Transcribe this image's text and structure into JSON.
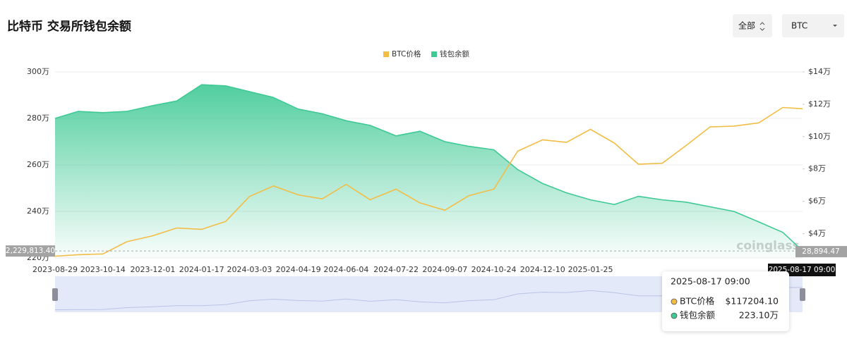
{
  "title": "比特币 交易所钱包余额",
  "controls": [
    "全部",
    "BTC"
  ],
  "watermark": "coinglass",
  "chart_data": {
    "type": "line",
    "x": [
      "2023-08-29",
      "2023-09-20",
      "2023-10-14",
      "2023-11-06",
      "2023-12-01",
      "2023-12-24",
      "2024-01-17",
      "2024-02-09",
      "2024-03-03",
      "2024-03-26",
      "2024-04-19",
      "2024-05-12",
      "2024-06-04",
      "2024-06-27",
      "2024-07-22",
      "2024-08-14",
      "2024-09-07",
      "2024-09-30",
      "2024-10-24",
      "2024-11-16",
      "2024-12-10",
      "2025-01-02",
      "2025-01-25",
      "2025-02-17",
      "2025-03-12",
      "2025-04-04",
      "2025-04-27",
      "2025-05-20",
      "2025-06-12",
      "2025-07-06",
      "2025-07-29",
      "2025-08-17"
    ],
    "xlim": [
      "2023-08-29",
      "2025-08-17"
    ],
    "xticks": [
      "2023-08-29",
      "2023-10-14",
      "2023-12-01",
      "2024-01-17",
      "2024-03-03",
      "2024-04-19",
      "2024-06-04",
      "2024-07-22",
      "2024-09-07",
      "2024-10-24",
      "2024-12-10",
      "2025-01-25"
    ],
    "series": [
      {
        "name": "BTC价格",
        "color": "#f3bd45",
        "axis": "y2",
        "values": [
          26100,
          27000,
          27500,
          35000,
          38700,
          43500,
          42700,
          47500,
          63000,
          69500,
          64000,
          61500,
          70500,
          61000,
          67500,
          59000,
          54500,
          63500,
          67500,
          91000,
          98000,
          96500,
          104500,
          96000,
          83000,
          83500,
          94500,
          106000,
          106500,
          108500,
          118000,
          117204.1
        ]
      },
      {
        "name": "钱包余额",
        "color": "#3ec995",
        "axis": "y",
        "values": [
          2800000,
          2830000,
          2825000,
          2830000,
          2855000,
          2875000,
          2945000,
          2940000,
          2915000,
          2890000,
          2840000,
          2820000,
          2790000,
          2770000,
          2725000,
          2745000,
          2700000,
          2680000,
          2665000,
          2580000,
          2520000,
          2480000,
          2450000,
          2430000,
          2465000,
          2450000,
          2440000,
          2420000,
          2400000,
          2355000,
          2310000,
          2231000
        ]
      }
    ],
    "ylim": [
      2200000,
      3000000
    ],
    "yticks": [
      {
        "value": 2200000,
        "label": "220万"
      },
      {
        "value": 2400000,
        "label": "240万"
      },
      {
        "value": 2600000,
        "label": "260万"
      },
      {
        "value": 2800000,
        "label": "280万"
      },
      {
        "value": 3000000,
        "label": "300万"
      }
    ],
    "y2lim": [
      25000,
      140000
    ],
    "y2ticks": [
      {
        "value": 40000,
        "label": "$4万"
      },
      {
        "value": 60000,
        "label": "$6万"
      },
      {
        "value": 80000,
        "label": "$8万"
      },
      {
        "value": 100000,
        "label": "$10万"
      },
      {
        "value": 120000,
        "label": "$12万"
      },
      {
        "value": 140000,
        "label": "$14万"
      }
    ],
    "grid": true,
    "legend": "top",
    "crosshair": {
      "y": {
        "value": 2229813.4,
        "label": "2,229,813.40"
      },
      "y2": {
        "value": 28894.47,
        "label": "28,894.47"
      },
      "x_label": "2025-08-17 09:00"
    },
    "tooltip": {
      "title": "2025-08-17 09:00",
      "value_labels": [
        "$117204.10",
        "223.10万"
      ]
    }
  }
}
